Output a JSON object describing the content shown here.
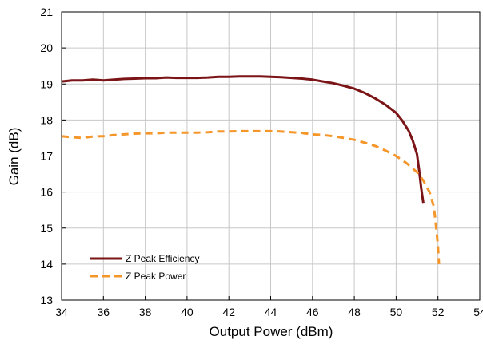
{
  "chart_data": {
    "type": "line",
    "title": "",
    "xlabel": "Output Power (dBm)",
    "ylabel": "Gain (dB)",
    "xlim": [
      34,
      54
    ],
    "ylim": [
      13,
      21
    ],
    "xticks": [
      "34",
      "36",
      "38",
      "40",
      "42",
      "44",
      "46",
      "48",
      "50",
      "52",
      "54"
    ],
    "yticks": [
      "13",
      "14",
      "15",
      "16",
      "17",
      "18",
      "19",
      "20",
      "21"
    ],
    "grid": true,
    "legend_position": "bottom-left",
    "series": [
      {
        "name": "Z Peak Efficiency",
        "color": "#7b1416",
        "style": "solid",
        "x": [
          34.0,
          34.5,
          35.0,
          35.5,
          36.0,
          36.5,
          37.0,
          37.5,
          38.0,
          38.5,
          39.0,
          39.5,
          40.0,
          40.5,
          41.0,
          41.5,
          42.0,
          42.5,
          43.0,
          43.5,
          44.0,
          44.5,
          45.0,
          45.5,
          46.0,
          46.5,
          47.0,
          47.5,
          48.0,
          48.5,
          49.0,
          49.5,
          50.0,
          50.3,
          50.6,
          50.8,
          51.0,
          51.1,
          51.2,
          51.3
        ],
        "y": [
          19.07,
          19.1,
          19.1,
          19.12,
          19.1,
          19.12,
          19.14,
          19.15,
          19.16,
          19.16,
          19.18,
          19.17,
          19.17,
          19.17,
          19.18,
          19.2,
          19.2,
          19.21,
          19.21,
          19.21,
          19.2,
          19.19,
          19.17,
          19.15,
          19.12,
          19.07,
          19.02,
          18.95,
          18.87,
          18.75,
          18.6,
          18.42,
          18.2,
          17.98,
          17.7,
          17.42,
          17.05,
          16.6,
          16.1,
          15.7
        ]
      },
      {
        "name": "Z Peak Power",
        "color": "#f5962a",
        "style": "dashed",
        "x": [
          34.0,
          34.5,
          35.0,
          35.5,
          36.0,
          36.5,
          37.0,
          37.5,
          38.0,
          38.5,
          39.0,
          39.5,
          40.0,
          40.5,
          41.0,
          41.5,
          42.0,
          42.5,
          43.0,
          43.5,
          44.0,
          44.5,
          45.0,
          45.5,
          46.0,
          46.5,
          47.0,
          47.5,
          48.0,
          48.5,
          49.0,
          49.5,
          50.0,
          50.5,
          51.0,
          51.3,
          51.6,
          51.8,
          51.9,
          52.0,
          52.05
        ],
        "y": [
          17.55,
          17.52,
          17.5,
          17.54,
          17.55,
          17.58,
          17.6,
          17.62,
          17.63,
          17.63,
          17.65,
          17.65,
          17.65,
          17.65,
          17.66,
          17.68,
          17.68,
          17.69,
          17.69,
          17.69,
          17.69,
          17.68,
          17.66,
          17.64,
          17.6,
          17.58,
          17.55,
          17.5,
          17.45,
          17.37,
          17.28,
          17.15,
          17.0,
          16.8,
          16.55,
          16.32,
          16.0,
          15.6,
          15.1,
          14.5,
          14.0
        ]
      }
    ]
  }
}
